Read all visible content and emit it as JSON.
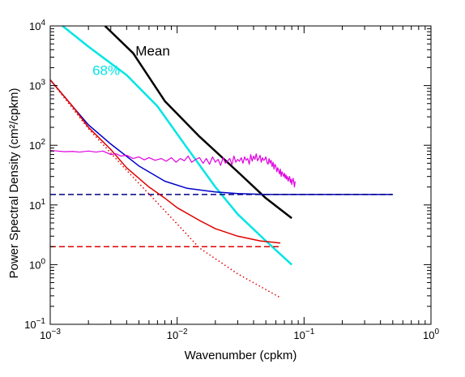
{
  "chart_data": {
    "type": "line",
    "xlabel": "Wavenumber (cpkm)",
    "ylabel": "Power Spectral Density (cm²/cpkm)",
    "xscale": "log",
    "yscale": "log",
    "xlim": [
      0.001,
      1
    ],
    "ylim": [
      0.1,
      10000
    ],
    "grid": false,
    "x_major_ticks": [
      {
        "value": 0.001,
        "base": "10",
        "exp": "−3"
      },
      {
        "value": 0.01,
        "base": "10",
        "exp": "−2"
      },
      {
        "value": 0.1,
        "base": "10",
        "exp": "−1"
      },
      {
        "value": 1,
        "base": "10",
        "exp": "0"
      }
    ],
    "y_major_ticks": [
      {
        "value": 0.1,
        "base": "10",
        "exp": "−1"
      },
      {
        "value": 1,
        "base": "10",
        "exp": "0"
      },
      {
        "value": 10,
        "base": "10",
        "exp": "1"
      },
      {
        "value": 100,
        "base": "10",
        "exp": "2"
      },
      {
        "value": 1000,
        "base": "10",
        "exp": "3"
      },
      {
        "value": 10000,
        "base": "10",
        "exp": "4"
      }
    ],
    "annotations": [
      {
        "text": "Mean",
        "x": 0.0047,
        "y": 3200,
        "color": "#000000"
      },
      {
        "text": "68%",
        "x": 0.00215,
        "y": 1500,
        "color": "#00e5e5"
      }
    ],
    "series": [
      {
        "color": "#000000",
        "style": "solid",
        "width": 2.5,
        "x": [
          0.0027,
          0.0045,
          0.008,
          0.015,
          0.03,
          0.05,
          0.08
        ],
        "y": [
          10000,
          3500,
          550,
          140,
          36,
          13,
          6
        ]
      },
      {
        "color": "#00e5e5",
        "style": "solid",
        "width": 2.5,
        "x": [
          0.00125,
          0.002,
          0.004,
          0.007,
          0.012,
          0.02,
          0.03,
          0.05,
          0.08
        ],
        "y": [
          10000,
          4500,
          1500,
          450,
          90,
          20,
          7,
          2.5,
          1
        ]
      },
      {
        "color": "#0000cc",
        "style": "solid",
        "width": 1.5,
        "x": [
          0.001,
          0.0015,
          0.002,
          0.003,
          0.005,
          0.008,
          0.012,
          0.02,
          0.03,
          0.05,
          0.08,
          0.2,
          0.5
        ],
        "y": [
          1250,
          450,
          220,
          105,
          45,
          25,
          19,
          16.5,
          15.5,
          15,
          15,
          15,
          15
        ]
      },
      {
        "color": "#000080",
        "style": "dashed",
        "width": 1.5,
        "x": [
          0.001,
          0.5
        ],
        "y": [
          15,
          15
        ]
      },
      {
        "color": "#e00000",
        "style": "solid",
        "width": 1.5,
        "x": [
          0.001,
          0.0015,
          0.002,
          0.003,
          0.004,
          0.006,
          0.008,
          0.01,
          0.015,
          0.02,
          0.03,
          0.045,
          0.065
        ],
        "y": [
          1250,
          450,
          200,
          85,
          42,
          20,
          13,
          9,
          5.5,
          4,
          3,
          2.5,
          2.3
        ]
      },
      {
        "color": "#e00000",
        "style": "dotted",
        "width": 1.5,
        "x": [
          0.001,
          0.002,
          0.004,
          0.008,
          0.015,
          0.03,
          0.065
        ],
        "y": [
          1250,
          190,
          38,
          8,
          1.9,
          0.7,
          0.28
        ]
      },
      {
        "color": "#e00000",
        "style": "dashed",
        "width": 1.5,
        "x": [
          0.001,
          0.065
        ],
        "y": [
          2,
          2
        ]
      },
      {
        "color": "#e000e0",
        "style": "solid",
        "width": 1.2,
        "x": [
          0.001,
          0.00115,
          0.0013,
          0.0015,
          0.0017,
          0.002,
          0.0023,
          0.0026,
          0.003,
          0.0033,
          0.0036,
          0.004,
          0.0045,
          0.005,
          0.0055,
          0.006,
          0.0067,
          0.0075,
          0.0082,
          0.009,
          0.0098,
          0.0106,
          0.0114,
          0.0122,
          0.013,
          0.014,
          0.015,
          0.016,
          0.017,
          0.018,
          0.019,
          0.02,
          0.021,
          0.022,
          0.023,
          0.024,
          0.025,
          0.026,
          0.027,
          0.028,
          0.029,
          0.03,
          0.031,
          0.032,
          0.033,
          0.034,
          0.035,
          0.036,
          0.037,
          0.038,
          0.039,
          0.04,
          0.041,
          0.042,
          0.043,
          0.044,
          0.045,
          0.046,
          0.047,
          0.048,
          0.049,
          0.05,
          0.051,
          0.052,
          0.053,
          0.054,
          0.055,
          0.056,
          0.057,
          0.058,
          0.059,
          0.06,
          0.061,
          0.062,
          0.063,
          0.064,
          0.065,
          0.066,
          0.067,
          0.068,
          0.069,
          0.07,
          0.071,
          0.072,
          0.073,
          0.074,
          0.075,
          0.076,
          0.077,
          0.078,
          0.079,
          0.08,
          0.081,
          0.082,
          0.083,
          0.084,
          0.085
        ],
        "y": [
          82,
          80,
          78,
          79,
          77,
          80,
          77,
          80,
          70,
          72,
          66,
          68,
          60,
          64,
          57,
          62,
          56,
          60,
          54,
          62,
          52,
          60,
          55,
          66,
          52,
          58,
          62,
          50,
          60,
          48,
          64,
          52,
          58,
          46,
          62,
          50,
          55,
          60,
          47,
          66,
          52,
          58,
          54,
          62,
          50,
          64,
          56,
          60,
          48,
          70,
          54,
          66,
          58,
          72,
          55,
          60,
          68,
          52,
          62,
          56,
          58,
          64,
          52,
          48,
          60,
          50,
          56,
          44,
          52,
          40,
          48,
          44,
          36,
          42,
          38,
          33,
          40,
          30,
          36,
          33,
          30,
          34,
          28,
          32,
          27,
          30,
          25,
          28,
          30,
          24,
          27,
          22,
          26,
          28,
          24,
          20,
          25
        ]
      }
    ]
  }
}
